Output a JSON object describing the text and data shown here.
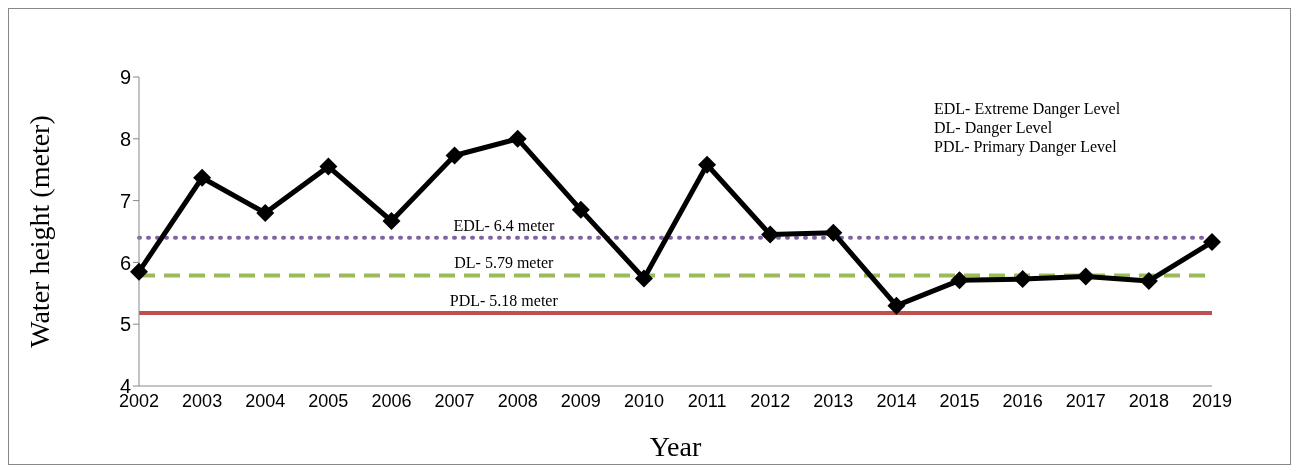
{
  "chart_data": {
    "type": "line",
    "xlabel": "Year",
    "ylabel": "Water height (meter)",
    "categories": [
      "2002",
      "2003",
      "2004",
      "2005",
      "2006",
      "2007",
      "2008",
      "2009",
      "2010",
      "2011",
      "2012",
      "2013",
      "2014",
      "2015",
      "2016",
      "2017",
      "2018",
      "2019"
    ],
    "series": [
      {
        "color": "#000000",
        "values": [
          5.85,
          7.37,
          6.8,
          7.55,
          6.67,
          7.73,
          8.0,
          6.85,
          5.74,
          7.58,
          6.45,
          6.48,
          5.3,
          5.71,
          5.73,
          5.77,
          5.7,
          6.33
        ]
      }
    ],
    "ylim": [
      4,
      9
    ],
    "yticks": [
      4,
      5,
      6,
      7,
      8,
      9
    ],
    "marker": "diamond",
    "line_style": "solid",
    "ref_lines": [
      {
        "axis": "y",
        "value": 6.4,
        "label": "EDL- 6.4 meter",
        "color": "#8064a2",
        "line_style": "dotted"
      },
      {
        "axis": "y",
        "value": 5.79,
        "label": "DL- 5.79 meter",
        "color": "#9bbb59",
        "line_style": "dashed"
      },
      {
        "axis": "y",
        "value": 5.18,
        "label": "PDL- 5.18 meter",
        "color": "#c0504d",
        "line_style": "solid"
      }
    ],
    "annotations": [
      "EDL- Extreme Danger Level",
      "DL- Danger Level",
      "PDL- Primary Danger Level"
    ]
  }
}
